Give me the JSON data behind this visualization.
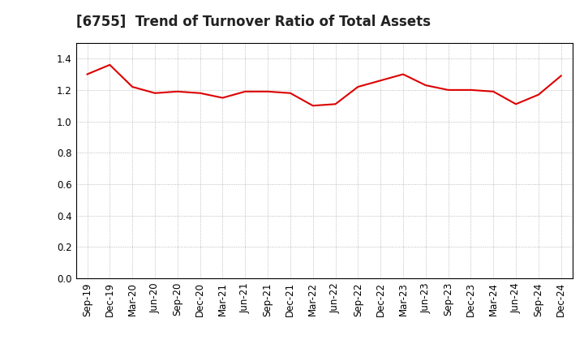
{
  "title": "[6755]  Trend of Turnover Ratio of Total Assets",
  "labels": [
    "Sep-19",
    "Dec-19",
    "Mar-20",
    "Jun-20",
    "Sep-20",
    "Dec-20",
    "Mar-21",
    "Jun-21",
    "Sep-21",
    "Dec-21",
    "Mar-22",
    "Jun-22",
    "Sep-22",
    "Dec-22",
    "Mar-23",
    "Jun-23",
    "Sep-23",
    "Dec-23",
    "Mar-24",
    "Jun-24",
    "Sep-24",
    "Dec-24"
  ],
  "values": [
    1.3,
    1.36,
    1.22,
    1.18,
    1.19,
    1.18,
    1.15,
    1.19,
    1.19,
    1.18,
    1.1,
    1.11,
    1.22,
    1.26,
    1.3,
    1.23,
    1.2,
    1.2,
    1.19,
    1.11,
    1.17,
    1.29
  ],
  "line_color": "#DD0000",
  "line_width": 1.5,
  "ylim": [
    0.0,
    1.5
  ],
  "yticks": [
    0.0,
    0.2,
    0.4,
    0.6,
    0.8,
    1.0,
    1.2,
    1.4
  ],
  "title_fontsize": 12,
  "tick_fontsize": 8.5,
  "background_color": "#ffffff",
  "grid_color": "#aaaaaa",
  "grid_style": ":"
}
